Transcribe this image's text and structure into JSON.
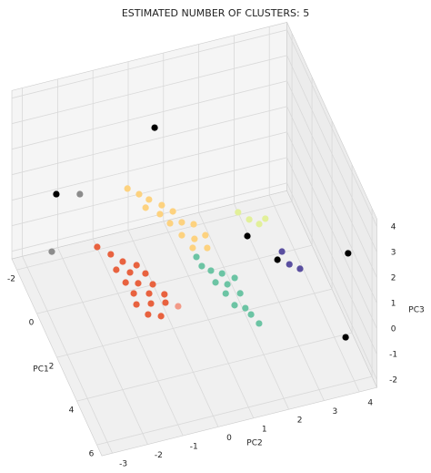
{
  "chart_data": {
    "type": "scatter3d",
    "title": "ESTIMATED NUMBER OF CLUSTERS: 5",
    "xlabel": "PC1",
    "ylabel": "PC2",
    "zlabel": "PC3",
    "xlim": [
      -2.5,
      6.5
    ],
    "ylim": [
      -3.3,
      4.5
    ],
    "zlim": [
      -2.3,
      4.3
    ],
    "xticks": [
      -2,
      0,
      2,
      4,
      6
    ],
    "yticks": [
      -3,
      -2,
      -1,
      0,
      1,
      2,
      3,
      4
    ],
    "zticks": [
      -2,
      -1,
      0,
      1,
      2,
      3,
      4
    ],
    "grid": true,
    "series": [
      {
        "color": "#e8623f",
        "x": [
          0.29,
          0.73,
          1.15,
          1.44,
          1.42,
          1.67,
          1.87,
          2.04,
          2.2,
          2.39,
          2.57,
          2.73,
          2.92,
          3.05,
          3.16,
          3.27,
          3.58,
          3.78
        ],
        "y": [
          -1.67,
          -1.41,
          -1.19,
          -0.88,
          -1.45,
          -1.13,
          -0.75,
          -1.36,
          -1.05,
          -0.69,
          -1.28,
          -0.89,
          -0.51,
          -1.34,
          -0.96,
          -0.58,
          -1.16,
          -0.85
        ],
        "z": [
          0,
          0,
          0,
          0,
          0,
          0,
          0,
          0,
          0,
          0,
          0,
          0,
          0,
          0,
          0,
          0,
          0,
          0
        ]
      },
      {
        "color": "#f29a88",
        "x": [
          3.55
        ],
        "y": [
          -0.3
        ],
        "z": [
          0
        ]
      },
      {
        "color": "#fdd27f",
        "x": [
          -1.8,
          -1.45,
          -1.13,
          -0.77,
          -0.83,
          -0.42,
          -0.4,
          0.06,
          0.14,
          0.34,
          0.67,
          0.95,
          0.91,
          1.3,
          1.45
        ],
        "y": [
          -0.22,
          0.01,
          0.2,
          0.46,
          0.02,
          0.31,
          0.67,
          0.46,
          0.77,
          1.05,
          0.62,
          0.9,
          1.22,
          0.75,
          1.12
        ],
        "z": [
          0,
          0,
          0,
          0,
          0,
          0,
          0,
          0,
          0,
          0,
          0,
          0,
          0,
          0,
          0
        ]
      },
      {
        "color": "#6cc4a4",
        "x": [
          1.71,
          2.14,
          2.42,
          2.65,
          2.95,
          3.15,
          2.96,
          3.51,
          3.65,
          4.08,
          4.31,
          4.63,
          5.08
        ],
        "y": [
          0.74,
          0.77,
          0.95,
          1.2,
          0.93,
          1.21,
          1.47,
          1.06,
          1.43,
          1.15,
          1.39,
          1.46,
          1.56
        ],
        "z": [
          0,
          0,
          0,
          0,
          0,
          0,
          0,
          0,
          0,
          0,
          0,
          0,
          0
        ]
      },
      {
        "color": "#e2f09a",
        "x": [
          0.3,
          0.71,
          1.0,
          0.84
        ],
        "y": [
          2.32,
          2.52,
          2.72,
          2.94
        ],
        "z": [
          0,
          0,
          0,
          0
        ]
      },
      {
        "color": "#5a4fa0",
        "x": [
          2.36,
          2.96,
          3.25
        ],
        "y": [
          2.98,
          3.02,
          3.24
        ],
        "z": [
          0,
          0,
          0
        ]
      },
      {
        "color": "#000000",
        "x": [
          -0.88,
          -0.2,
          1.37,
          2.65,
          5.2,
          5.48
        ],
        "y": [
          0.29,
          -2.69,
          2.28,
          2.77,
          4.05,
          3.9
        ],
        "z": [
          3,
          2,
          0,
          0,
          2,
          -1
        ]
      },
      {
        "color": "#8c8c8c",
        "x": [
          0.04,
          0.02
        ],
        "y": [
          -2.09,
          -2.88
        ],
        "z": [
          2,
          0
        ]
      }
    ]
  }
}
